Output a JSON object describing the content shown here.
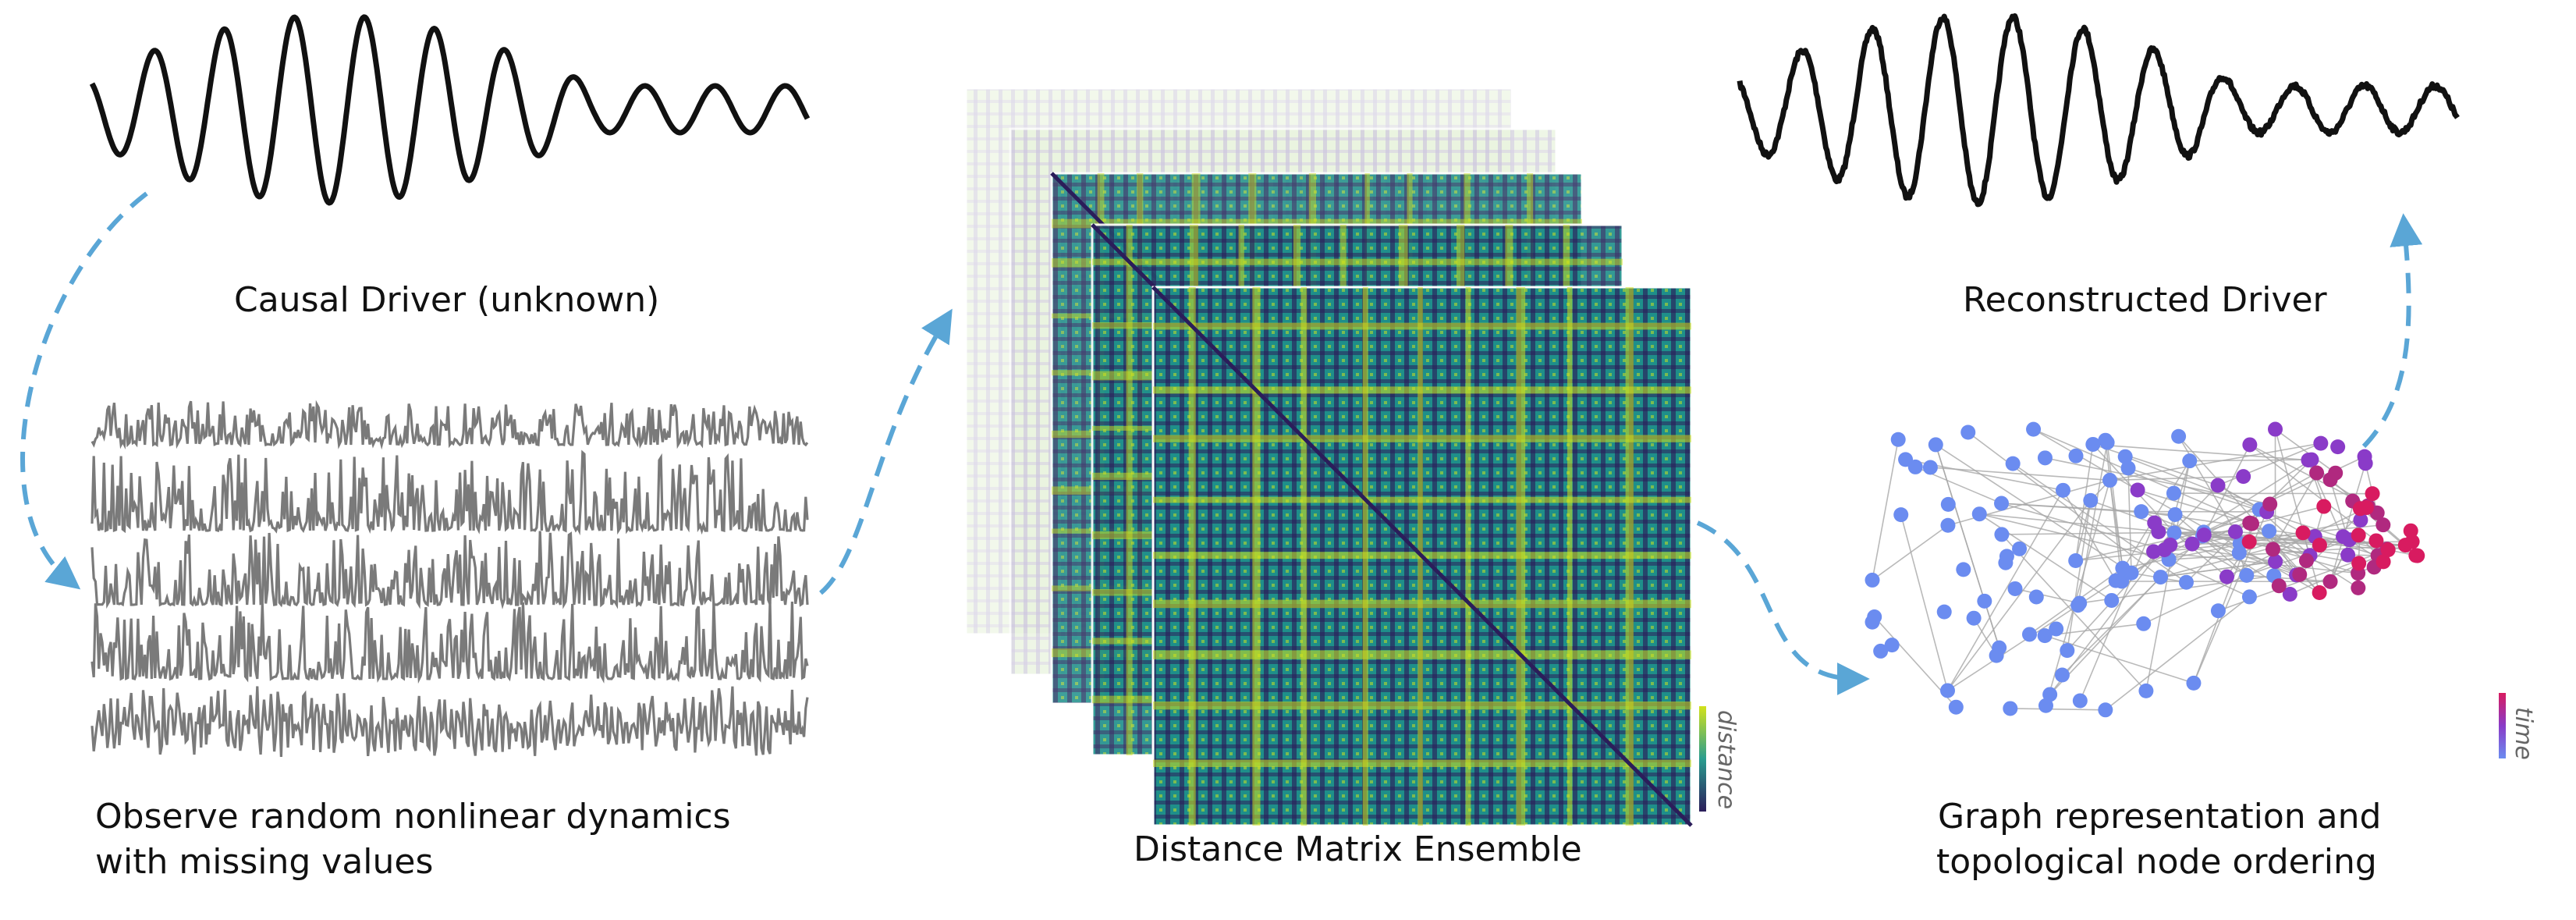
{
  "captions": {
    "causal_driver": "Causal Driver (unknown)",
    "observe_line1": "Observe random nonlinear dynamics",
    "observe_line2": "with missing values",
    "distance_ensemble": "Distance Matrix Ensemble",
    "reconstructed": "Reconstructed Driver",
    "graph_line1": "Graph representation and",
    "graph_line2": "topological node ordering"
  },
  "colorbar_labels": {
    "distance": "distance",
    "time": "time"
  },
  "colors": {
    "driver_line": "#111111",
    "observed_line": "#7a7a7a",
    "arrow": "#5aa6d6",
    "viridis_dark": "#2b1d5a",
    "viridis_mid": "#2a9d8f",
    "viridis_light": "#d2e21b",
    "node_early": "#6b8cf0",
    "node_mid": "#8a3bc8",
    "node_late": "#d81b60",
    "edge": "#a8a8a8"
  },
  "matrix_count": 5,
  "observed_series_count": 5
}
